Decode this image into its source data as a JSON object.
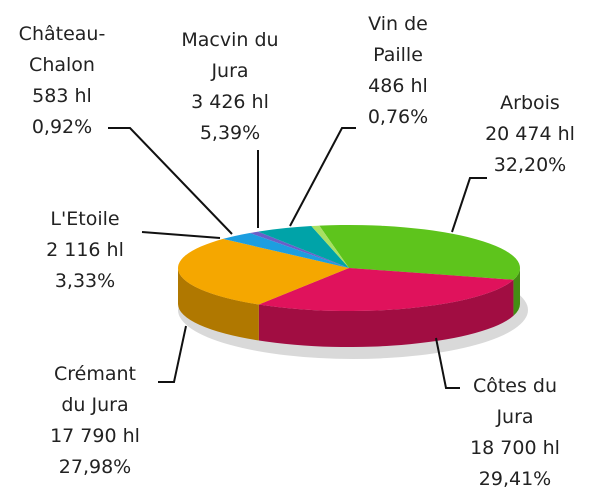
{
  "chart_data": {
    "type": "pie3d",
    "categories": [
      "Arbois",
      "Côtes du Jura",
      "Crémant du Jura",
      "L'Etoile",
      "Château-Chalon",
      "Macvin du Jura",
      "Vin de Paille"
    ],
    "values": [
      20474,
      18700,
      17790,
      2116,
      583,
      3426,
      486
    ],
    "value_labels": [
      "20 474 hl",
      "18 700 hl",
      "17 790 hl",
      "2 116 hl",
      "583 hl",
      "3 426 hl",
      "486 hl"
    ],
    "percents": [
      32.2,
      29.41,
      27.98,
      3.33,
      0.92,
      5.39,
      0.76
    ],
    "percent_labels": [
      "32,20%",
      "29,41%",
      "27,98%",
      "3,33%",
      "0,92%",
      "5,39%",
      "0,76%"
    ],
    "colors": [
      "#5ec41c",
      "#e0125c",
      "#f5a700",
      "#1c9ee0",
      "#6a5fc8",
      "#00a3a8",
      "#a9e063"
    ]
  }
}
